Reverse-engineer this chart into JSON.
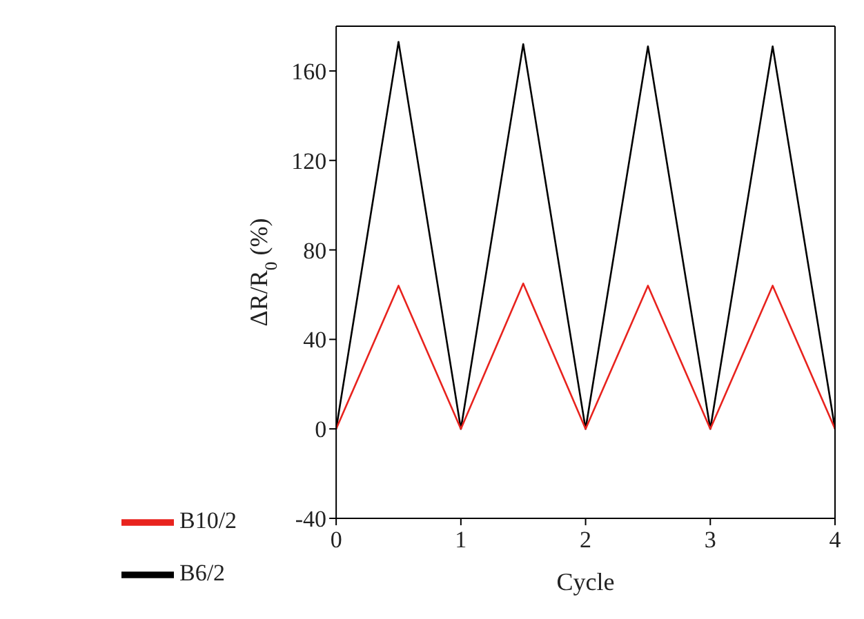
{
  "chart_data": {
    "type": "line",
    "xlabel": "Cycle",
    "ylabel": "ΔR/R$_{0}$ (%)",
    "x": [
      0,
      0.5,
      1,
      1.5,
      2,
      2.5,
      3,
      3.5,
      4
    ],
    "series": [
      {
        "name": "B6/2",
        "color": "#000000",
        "values": [
          0,
          173,
          0,
          172,
          0,
          171,
          0,
          171,
          0
        ]
      },
      {
        "name": "B10/2",
        "color": "#e8231e",
        "values": [
          0,
          64,
          0,
          65,
          0,
          64,
          0,
          64,
          0
        ]
      }
    ],
    "xlim": [
      0,
      4
    ],
    "xticks": [
      0,
      1,
      2,
      3,
      4
    ],
    "ylim": [
      -40,
      180
    ],
    "yticks": [
      -40,
      0,
      40,
      80,
      120,
      160
    ],
    "legend": "bottom left",
    "marker": "none",
    "line_style": "solid"
  }
}
